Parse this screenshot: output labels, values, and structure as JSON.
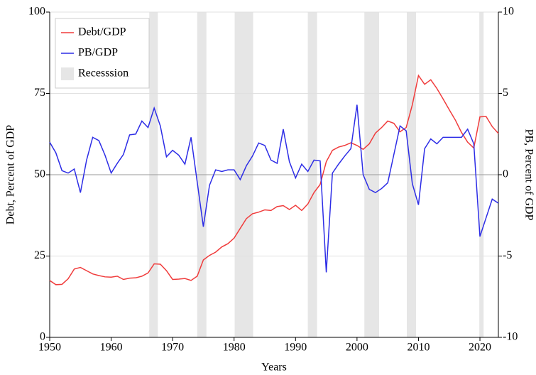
{
  "chart_data": {
    "type": "line",
    "xlabel": "Years",
    "ylabel": "Debt, Percent of GDP",
    "y2label": "PB, Percent of GDP",
    "x": [
      1950,
      1951,
      1952,
      1953,
      1954,
      1955,
      1956,
      1957,
      1958,
      1959,
      1960,
      1961,
      1962,
      1963,
      1964,
      1965,
      1966,
      1967,
      1968,
      1969,
      1970,
      1971,
      1972,
      1973,
      1974,
      1975,
      1976,
      1977,
      1978,
      1979,
      1980,
      1981,
      1982,
      1983,
      1984,
      1985,
      1986,
      1987,
      1988,
      1989,
      1990,
      1991,
      1992,
      1993,
      1994,
      1995,
      1996,
      1997,
      1998,
      1999,
      2000,
      2001,
      2002,
      2003,
      2004,
      2005,
      2006,
      2007,
      2008,
      2009,
      2010,
      2011,
      2012,
      2013,
      2014,
      2015,
      2016,
      2017,
      2018,
      2019,
      2020,
      2021,
      2022,
      2023
    ],
    "series": [
      {
        "name": "Debt/GDP",
        "color": "#f03c3c",
        "axis": "y",
        "values": [
          17.5,
          16.2,
          16.3,
          18,
          21,
          21.5,
          20.5,
          19.5,
          19,
          18.6,
          18.5,
          18.8,
          17.8,
          18.2,
          18.3,
          18.8,
          19.8,
          22.6,
          22.5,
          20.5,
          17.8,
          17.9,
          18.1,
          17.5,
          18.8,
          23.8,
          25.2,
          26.2,
          27.8,
          28.8,
          30.5,
          33.5,
          36.5,
          38,
          38.5,
          39.2,
          39,
          40.2,
          40.5,
          39.3,
          40.6,
          39,
          41,
          44.5,
          47,
          54,
          57.5,
          58.5,
          59,
          59.8,
          59,
          57.8,
          59.5,
          62.8,
          64.5,
          66.5,
          65.8,
          63.2,
          64.5,
          71.5,
          80.5,
          77.8,
          79.2,
          76.5,
          73.3,
          70,
          66.8,
          63,
          60,
          58.2,
          67.8,
          67.9,
          64.8,
          62.7
        ]
      },
      {
        "name": "PB/GDP",
        "color": "#2d2de6",
        "axis": "y2",
        "values": [
          2.0,
          1.35,
          0.25,
          0.1,
          0.35,
          -1.1,
          0.9,
          2.3,
          2.1,
          1.2,
          0.1,
          0.7,
          1.25,
          2.45,
          2.5,
          3.3,
          2.9,
          4.1,
          3.0,
          1.1,
          1.5,
          1.2,
          0.65,
          2.3,
          -0.45,
          -3.2,
          -0.65,
          0.3,
          0.2,
          0.3,
          0.3,
          -0.3,
          0.55,
          1.15,
          1.95,
          1.8,
          0.9,
          0.7,
          2.8,
          0.8,
          -0.2,
          0.65,
          0.2,
          0.9,
          0.85,
          -6.0,
          0.1,
          0.65,
          1.15,
          1.6,
          4.3,
          0,
          -0.9,
          -1.1,
          -0.85,
          -0.5,
          1.25,
          3.0,
          2.7,
          -0.55,
          -1.85,
          1.6,
          2.2,
          1.9,
          2.3,
          2.3,
          2.3,
          2.3,
          2.8,
          1.9,
          -3.8,
          -2.65,
          -1.5,
          -1.75
        ]
      }
    ],
    "recessions": {
      "name": "Recesssion",
      "color": "#e6e6e6",
      "spans": [
        [
          1966.2,
          1967.6
        ],
        [
          1974.0,
          1975.5
        ],
        [
          1980.1,
          1983.1
        ],
        [
          1992.0,
          1993.5
        ],
        [
          2001.2,
          2003.6
        ],
        [
          2008.1,
          2009.6
        ],
        [
          2019.9,
          2020.6
        ]
      ]
    },
    "xlim": [
      1950,
      2023
    ],
    "xticks": [
      1950,
      1960,
      1970,
      1980,
      1990,
      2000,
      2010,
      2020
    ],
    "ylim": [
      0,
      100
    ],
    "yticks": [
      0,
      25,
      50,
      75,
      100
    ],
    "y2lim": [
      -10,
      10
    ],
    "y2ticks": [
      -10,
      -5,
      0,
      5,
      10
    ],
    "grid": true,
    "legend": "upper left"
  }
}
